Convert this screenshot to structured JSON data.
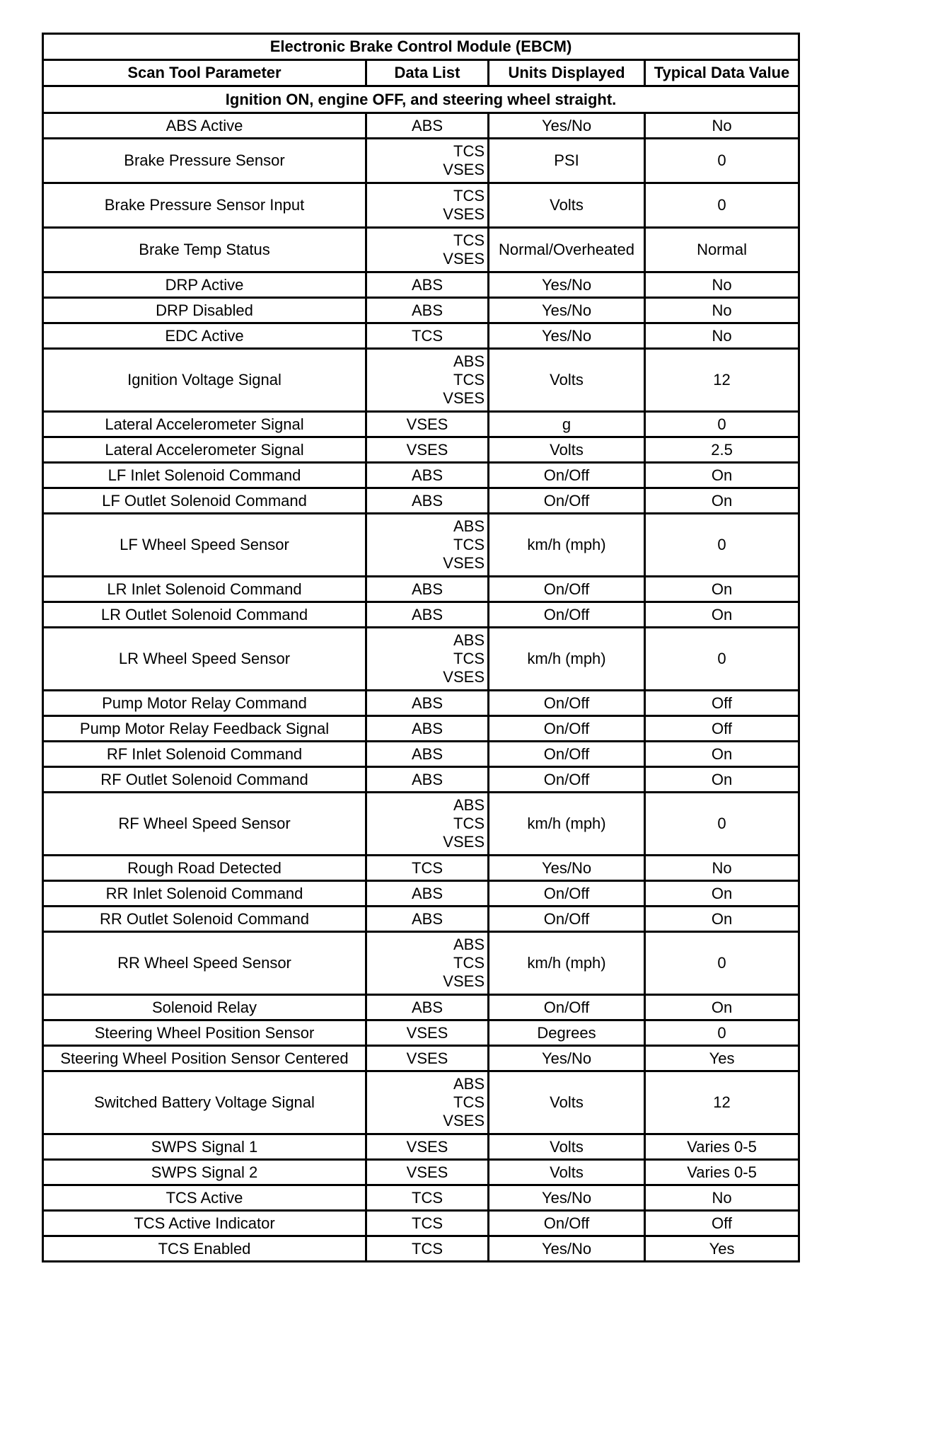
{
  "title": "Electronic Brake Control Module (EBCM)",
  "headers": [
    "Scan Tool Parameter",
    "Data List",
    "Units Displayed",
    "Typical Data Value"
  ],
  "condition": "Ignition ON, engine OFF, and steering wheel straight.",
  "rows": [
    {
      "param": "ABS Active",
      "data_list": [
        "ABS"
      ],
      "units": "Yes/No",
      "value": "No"
    },
    {
      "param": "Brake Pressure Sensor",
      "data_list": [
        "TCS",
        "VSES"
      ],
      "units": "PSI",
      "value": "0"
    },
    {
      "param": "Brake Pressure Sensor Input",
      "data_list": [
        "TCS",
        "VSES"
      ],
      "units": "Volts",
      "value": "0"
    },
    {
      "param": "Brake Temp Status",
      "data_list": [
        "TCS",
        "VSES"
      ],
      "units": "Normal/Overheated",
      "value": "Normal"
    },
    {
      "param": "DRP Active",
      "data_list": [
        "ABS"
      ],
      "units": "Yes/No",
      "value": "No"
    },
    {
      "param": "DRP Disabled",
      "data_list": [
        "ABS"
      ],
      "units": "Yes/No",
      "value": "No"
    },
    {
      "param": "EDC Active",
      "data_list": [
        "TCS"
      ],
      "units": "Yes/No",
      "value": "No"
    },
    {
      "param": "Ignition Voltage Signal",
      "data_list": [
        "ABS",
        "TCS",
        "VSES"
      ],
      "units": "Volts",
      "value": "12"
    },
    {
      "param": "Lateral Accelerometer Signal",
      "data_list": [
        "VSES"
      ],
      "units": "g",
      "value": "0"
    },
    {
      "param": "Lateral Accelerometer Signal",
      "data_list": [
        "VSES"
      ],
      "units": "Volts",
      "value": "2.5"
    },
    {
      "param": "LF Inlet Solenoid Command",
      "data_list": [
        "ABS"
      ],
      "units": "On/Off",
      "value": "On"
    },
    {
      "param": "LF Outlet Solenoid Command",
      "data_list": [
        "ABS"
      ],
      "units": "On/Off",
      "value": "On"
    },
    {
      "param": "LF Wheel Speed Sensor",
      "data_list": [
        "ABS",
        "TCS",
        "VSES"
      ],
      "units": "km/h (mph)",
      "value": "0"
    },
    {
      "param": "LR Inlet Solenoid Command",
      "data_list": [
        "ABS"
      ],
      "units": "On/Off",
      "value": "On"
    },
    {
      "param": "LR Outlet Solenoid Command",
      "data_list": [
        "ABS"
      ],
      "units": "On/Off",
      "value": "On"
    },
    {
      "param": "LR Wheel Speed Sensor",
      "data_list": [
        "ABS",
        "TCS",
        "VSES"
      ],
      "units": "km/h (mph)",
      "value": "0"
    },
    {
      "param": "Pump Motor Relay Command",
      "data_list": [
        "ABS"
      ],
      "units": "On/Off",
      "value": "Off"
    },
    {
      "param": "Pump Motor Relay Feedback Signal",
      "data_list": [
        "ABS"
      ],
      "units": "On/Off",
      "value": "Off"
    },
    {
      "param": "RF Inlet Solenoid Command",
      "data_list": [
        "ABS"
      ],
      "units": "On/Off",
      "value": "On"
    },
    {
      "param": "RF Outlet Solenoid Command",
      "data_list": [
        "ABS"
      ],
      "units": "On/Off",
      "value": "On"
    },
    {
      "param": "RF Wheel Speed Sensor",
      "data_list": [
        "ABS",
        "TCS",
        "VSES"
      ],
      "units": "km/h (mph)",
      "value": "0"
    },
    {
      "param": "Rough Road Detected",
      "data_list": [
        "TCS"
      ],
      "units": "Yes/No",
      "value": "No"
    },
    {
      "param": "RR Inlet Solenoid Command",
      "data_list": [
        "ABS"
      ],
      "units": "On/Off",
      "value": "On"
    },
    {
      "param": "RR Outlet Solenoid Command",
      "data_list": [
        "ABS"
      ],
      "units": "On/Off",
      "value": "On"
    },
    {
      "param": "RR Wheel Speed Sensor",
      "data_list": [
        "ABS",
        "TCS",
        "VSES"
      ],
      "units": "km/h (mph)",
      "value": "0"
    },
    {
      "param": "Solenoid Relay",
      "data_list": [
        "ABS"
      ],
      "units": "On/Off",
      "value": "On"
    },
    {
      "param": "Steering Wheel Position Sensor",
      "data_list": [
        "VSES"
      ],
      "units": "Degrees",
      "value": "0"
    },
    {
      "param": "Steering Wheel Position Sensor Centered",
      "data_list": [
        "VSES"
      ],
      "units": "Yes/No",
      "value": "Yes"
    },
    {
      "param": "Switched Battery Voltage Signal",
      "data_list": [
        "ABS",
        "TCS",
        "VSES"
      ],
      "units": "Volts",
      "value": "12"
    },
    {
      "param": "SWPS Signal 1",
      "data_list": [
        "VSES"
      ],
      "units": "Volts",
      "value": "Varies 0-5"
    },
    {
      "param": "SWPS Signal 2",
      "data_list": [
        "VSES"
      ],
      "units": "Volts",
      "value": "Varies 0-5"
    },
    {
      "param": "TCS Active",
      "data_list": [
        "TCS"
      ],
      "units": "Yes/No",
      "value": "No"
    },
    {
      "param": "TCS Active Indicator",
      "data_list": [
        "TCS"
      ],
      "units": "On/Off",
      "value": "Off"
    },
    {
      "param": "TCS Enabled",
      "data_list": [
        "TCS"
      ],
      "units": "Yes/No",
      "value": "Yes"
    }
  ]
}
